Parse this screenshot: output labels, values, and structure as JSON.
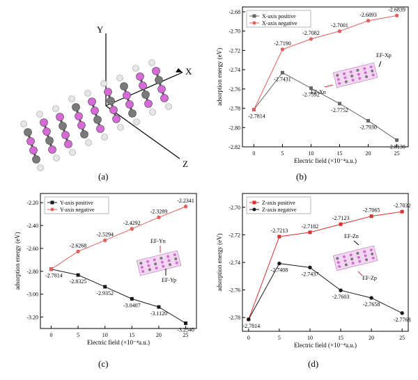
{
  "structure": {
    "axis_labels": {
      "x": "X",
      "y": "Y",
      "z": "Z"
    },
    "label": "(a)",
    "colors": {
      "carbon": "#7a7a7a",
      "boron": "#d66ad6",
      "hydrogen": "#e6e6e6",
      "bond": "#555555"
    }
  },
  "panel_letters": {
    "b": "(b)",
    "c": "(c)",
    "d": "(d)"
  },
  "chart_data": [
    {
      "panel": "b",
      "type": "line",
      "xlabel": "Electric field (×10⁻⁴a.u.)",
      "ylabel": "adsorption energy (eV)",
      "xlim": [
        -2,
        27
      ],
      "ylim": [
        -2.82,
        -2.675
      ],
      "xticks": [
        0,
        5,
        10,
        15,
        20,
        25
      ],
      "yticks": [
        -2.82,
        -2.8,
        -2.78,
        -2.76,
        -2.74,
        -2.72,
        -2.7,
        -2.68
      ],
      "ytick_labels": [
        "-2.82",
        "-2.80",
        "-2.78",
        "-2.76",
        "-2.74",
        "-2.72",
        "-2.70",
        "-2.68"
      ],
      "legend_position": "top-left",
      "inset": {
        "labels": [
          "EF-Xp",
          "EF-Xn"
        ]
      },
      "x": [
        0,
        5,
        10,
        15,
        20,
        25
      ],
      "series": [
        {
          "name": "X-axis positive",
          "marker": "square",
          "color": "#666666",
          "values": [
            -2.7814,
            -2.7431,
            -2.7592,
            -2.7752,
            -2.793,
            -2.813
          ],
          "labels": [
            "-2.7814",
            "-2.7431",
            "-2.7592",
            "-2.7752",
            "-2.7930",
            "-2.8130"
          ]
        },
        {
          "name": "X-axis negative",
          "marker": "circle",
          "color": "#e06060",
          "values": [
            -2.7814,
            -2.719,
            -2.7082,
            -2.7001,
            -2.6893,
            -2.6839
          ],
          "labels": [
            "",
            "-2.7190",
            "-2.7082",
            "-2.7001",
            "-2.6893",
            "-2.6839"
          ]
        }
      ]
    },
    {
      "panel": "c",
      "type": "line",
      "xlabel": "Electric field (×10⁻⁴a.u.)",
      "ylabel": "adsorption energy (eV)",
      "xlim": [
        -2,
        27
      ],
      "ylim": [
        -3.3,
        -2.12
      ],
      "xticks": [
        0,
        5,
        10,
        15,
        20,
        25
      ],
      "yticks": [
        -3.2,
        -3.0,
        -2.8,
        -2.6,
        -2.4,
        -2.2
      ],
      "ytick_labels": [
        "-3.20",
        "-3.00",
        "-2.80",
        "-2.60",
        "-2.40",
        "-2.20"
      ],
      "legend_position": "top-left",
      "inset": {
        "labels": [
          "EF-Yn",
          "EF-Yp"
        ]
      },
      "x": [
        0,
        5,
        10,
        15,
        20,
        25
      ],
      "series": [
        {
          "name": "Y-axis positive",
          "marker": "square",
          "color": "#1a1a1a",
          "values": [
            -2.7814,
            -2.8325,
            -2.9352,
            -3.0407,
            -3.112,
            -3.254
          ],
          "labels": [
            "-2.7814",
            "-2.8325",
            "-2.9352",
            "-3.0407",
            "-3.1120",
            "-3.2540"
          ]
        },
        {
          "name": "Y-axis negative",
          "marker": "circle",
          "color": "#e06060",
          "values": [
            -2.7814,
            -2.6268,
            -2.5294,
            -2.4292,
            -2.3289,
            -2.2341
          ],
          "labels": [
            "",
            "-2.6268",
            "-2.5294",
            "-2.4292",
            "-2.3289",
            "-2.2341"
          ]
        }
      ]
    },
    {
      "panel": "d",
      "type": "line",
      "xlabel": "Electric field (×10⁻⁴a.u.)",
      "ylabel": "adsorption energy (eV)",
      "xlim": [
        -1,
        26
      ],
      "ylim": [
        -2.79,
        -2.69
      ],
      "xticks": [
        0,
        5,
        10,
        15,
        20,
        25
      ],
      "yticks": [
        -2.78,
        -2.76,
        -2.74,
        -2.72,
        -2.7
      ],
      "ytick_labels": [
        "-2.78",
        "-2.76",
        "-2.74",
        "-2.72",
        "-2.70"
      ],
      "legend_position": "top-left",
      "inset": {
        "labels": [
          "EF-Zn",
          "EF-Zp"
        ]
      },
      "x": [
        0,
        5,
        10,
        15,
        20,
        25
      ],
      "series": [
        {
          "name": "Z-axis positive",
          "marker": "square",
          "color": "#d93030",
          "values": [
            -2.7814,
            -2.7213,
            -2.7182,
            -2.7123,
            -2.7065,
            -2.7032
          ],
          "labels": [
            "",
            "-2.7213",
            "-2.7182",
            "-2.7123",
            "-2.7065",
            "-2.7032"
          ]
        },
        {
          "name": "Z-axis negative",
          "marker": "circle",
          "color": "#1a1a1a",
          "values": [
            -2.7814,
            -2.7408,
            -2.7437,
            -2.7603,
            -2.7658,
            -2.7768
          ],
          "labels": [
            "-2.7814",
            "-2.7408",
            "-2.7437",
            "-2.7603",
            "-2.7658",
            "-2.7768"
          ]
        }
      ]
    }
  ]
}
